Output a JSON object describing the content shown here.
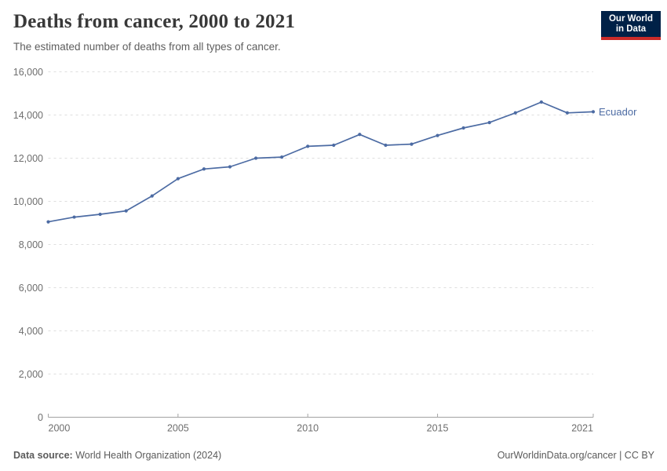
{
  "header": {
    "title": "Deaths from cancer, 2000 to 2021",
    "subtitle": "The estimated number of deaths from all types of cancer.",
    "logo": {
      "line1": "Our World",
      "line2": "in Data",
      "bg_color": "#002147",
      "stripe_color": "#ca2b29"
    }
  },
  "chart_data": {
    "type": "line",
    "title": "Deaths from cancer, 2000 to 2021",
    "xlabel": "",
    "ylabel": "",
    "xlim": [
      2000,
      2021
    ],
    "ylim": [
      0,
      16000
    ],
    "grid": "horizontal-dashed",
    "legend_position": "end-of-line-label",
    "x_ticks": [
      2000,
      2005,
      2010,
      2015,
      2021
    ],
    "x_tick_labels": [
      "2000",
      "2005",
      "2010",
      "2015",
      "2021"
    ],
    "y_ticks": [
      0,
      2000,
      4000,
      6000,
      8000,
      10000,
      12000,
      14000,
      16000
    ],
    "y_tick_labels": [
      "0",
      "2,000",
      "4,000",
      "6,000",
      "8,000",
      "10,000",
      "12,000",
      "14,000",
      "16,000"
    ],
    "series": [
      {
        "name": "Ecuador",
        "color": "#4c6ba3",
        "x": [
          2000,
          2001,
          2002,
          2003,
          2004,
          2005,
          2006,
          2007,
          2008,
          2009,
          2010,
          2011,
          2012,
          2013,
          2014,
          2015,
          2016,
          2017,
          2018,
          2019,
          2020,
          2021
        ],
        "values": [
          9050,
          9270,
          9400,
          9560,
          10250,
          11050,
          11500,
          11600,
          12000,
          12050,
          12550,
          12600,
          13100,
          12600,
          12650,
          13050,
          13400,
          13650,
          14100,
          14600,
          14100,
          14150
        ]
      }
    ]
  },
  "footer": {
    "source_label": "Data source:",
    "source_text": " World Health Organization (2024)",
    "credit": "OurWorldinData.org/cancer | CC BY"
  }
}
